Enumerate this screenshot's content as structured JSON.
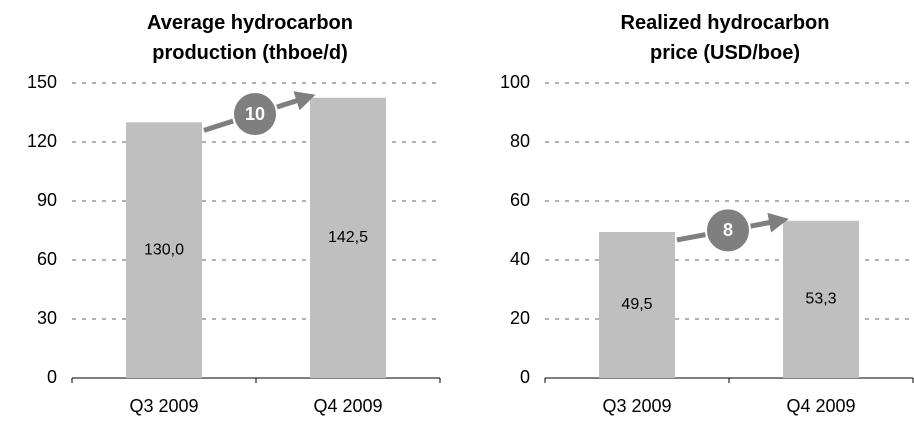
{
  "chart_data": [
    {
      "type": "bar",
      "title": "Average hydrocarbon production (thboe/d)",
      "categories": [
        "Q3 2009",
        "Q4 2009"
      ],
      "values": [
        130.0,
        142.5
      ],
      "value_labels": [
        "130,0",
        "142,5"
      ],
      "color": "#bfbfbf",
      "ylim": [
        0,
        150
      ],
      "yticks": [
        0,
        30,
        60,
        90,
        120,
        150
      ],
      "grid": true,
      "annotation": "10"
    },
    {
      "type": "bar",
      "title": "Realized hydrocarbon price (USD/boe)",
      "categories": [
        "Q3 2009",
        "Q4 2009"
      ],
      "values": [
        49.5,
        53.3
      ],
      "value_labels": [
        "49,5",
        "53,3"
      ],
      "color": "#bfbfbf",
      "ylim": [
        0,
        100
      ],
      "yticks": [
        0,
        20,
        40,
        60,
        80,
        100
      ],
      "grid": true,
      "annotation": "8"
    }
  ]
}
